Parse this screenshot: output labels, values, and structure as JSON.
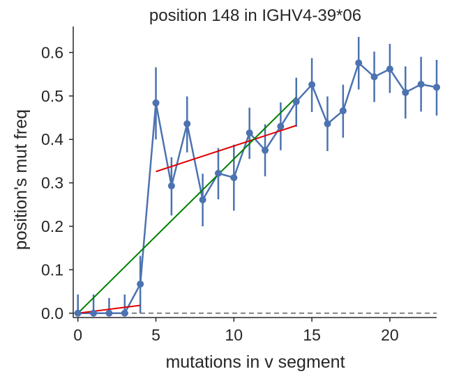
{
  "chart_data": {
    "type": "line",
    "title": "position 148 in IGHV4-39*06",
    "xlabel": "mutations in v segment",
    "ylabel": "position's mut freq",
    "xlim": [
      -0.3,
      23
    ],
    "ylim": [
      -0.01,
      0.66
    ],
    "x_ticks": [
      0,
      5,
      10,
      15,
      20
    ],
    "y_ticks": [
      0.0,
      0.1,
      0.2,
      0.3,
      0.4,
      0.5,
      0.6
    ],
    "x_tick_labels": [
      "0",
      "5",
      "10",
      "15",
      "20"
    ],
    "y_tick_labels": [
      "0.0",
      "0.1",
      "0.2",
      "0.3",
      "0.4",
      "0.5",
      "0.6"
    ],
    "grid": false,
    "colors": {
      "series": "#4c72b0",
      "fit_piecewise": "#e00000",
      "fit_linear": "#008000",
      "baseline": "#808080",
      "axis": "#262626"
    },
    "series": [
      {
        "x": [
          0,
          1,
          2,
          3,
          4,
          5,
          6,
          7,
          8,
          9,
          10,
          11,
          12,
          13,
          14,
          15,
          16,
          17,
          18,
          19,
          20,
          21,
          22,
          23
        ],
        "values": [
          0.0,
          0.0,
          0.0,
          0.0,
          0.067,
          0.484,
          0.293,
          0.436,
          0.261,
          0.322,
          0.312,
          0.415,
          0.375,
          0.43,
          0.487,
          0.526,
          0.436,
          0.466,
          0.576,
          0.544,
          0.562,
          0.508,
          0.527,
          0.52
        ],
        "err_low": [
          0.0,
          0.0,
          0.0,
          0.0,
          0.067,
          0.084,
          0.068,
          0.066,
          0.061,
          0.06,
          0.076,
          0.06,
          0.06,
          0.055,
          0.058,
          0.063,
          0.063,
          0.062,
          0.061,
          0.058,
          0.055,
          0.06,
          0.063,
          0.065
        ],
        "err_high": [
          0.043,
          0.043,
          0.035,
          0.043,
          0.065,
          0.082,
          0.066,
          0.063,
          0.06,
          0.058,
          0.076,
          0.058,
          0.06,
          0.055,
          0.055,
          0.061,
          0.063,
          0.06,
          0.06,
          0.058,
          0.058,
          0.06,
          0.063,
          0.063
        ]
      }
    ],
    "fit_lines": [
      {
        "name": "",
        "color": "fit_piecewise",
        "x": [
          0,
          4
        ],
        "y": [
          0.0,
          0.018
        ]
      },
      {
        "name": "",
        "color": "fit_piecewise",
        "x": [
          5,
          14
        ],
        "y": [
          0.326,
          0.432
        ]
      },
      {
        "name": "",
        "color": "fit_linear",
        "x": [
          0,
          14
        ],
        "y": [
          0.0,
          0.497
        ]
      }
    ],
    "baseline": 0.0
  }
}
